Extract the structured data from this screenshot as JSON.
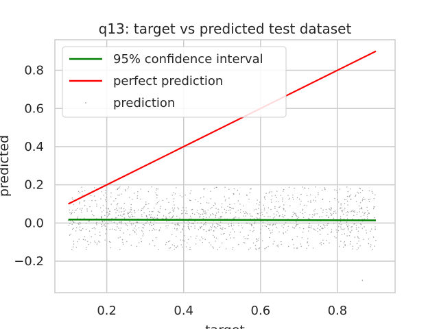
{
  "chart_data": {
    "type": "scatter",
    "title": "q13: target vs predicted test dataset",
    "xlabel": "target",
    "ylabel": "predicted",
    "xlim": [
      0.065,
      0.95
    ],
    "ylim": [
      -0.365,
      0.96
    ],
    "xticks": [
      0.2,
      0.4,
      0.6,
      0.8
    ],
    "xtick_labels": [
      "0.2",
      "0.4",
      "0.6",
      "0.8"
    ],
    "yticks": [
      -0.2,
      0.0,
      0.2,
      0.4,
      0.6,
      0.8
    ],
    "ytick_labels": [
      "−0.2",
      "0.0",
      "0.2",
      "0.4",
      "0.6",
      "0.8"
    ],
    "grid": true,
    "legend_position": "top-left",
    "series": [
      {
        "name": "95% confidence interval",
        "kind": "line",
        "color": "#008000",
        "x": [
          0.1,
          0.9
        ],
        "y": [
          0.018,
          0.014
        ]
      },
      {
        "name": "perfect prediction",
        "kind": "line",
        "color": "#ff0000",
        "x": [
          0.1,
          0.9
        ],
        "y": [
          0.1,
          0.9
        ]
      },
      {
        "name": "prediction",
        "kind": "scatter",
        "color": "#808080",
        "x_range": [
          0.1,
          0.9
        ],
        "y_range": [
          -0.14,
          0.19
        ],
        "approx_points": 1200,
        "outliers": [
          {
            "x": 0.865,
            "y": -0.3
          }
        ]
      }
    ]
  }
}
